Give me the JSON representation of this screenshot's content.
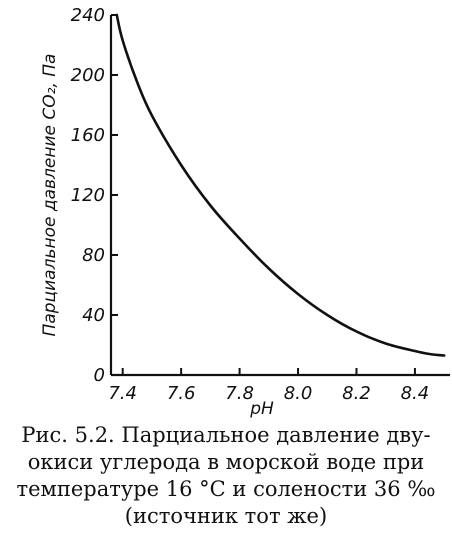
{
  "chart_data": {
    "type": "line",
    "xlabel": "pH",
    "ylabel": "Парциальное давление CO₂, Па",
    "xlim": [
      7.36,
      8.52
    ],
    "ylim": [
      0,
      240
    ],
    "x_ticks": [
      "7.4",
      "7.6",
      "7.8",
      "8.0",
      "8.2",
      "8.4"
    ],
    "y_ticks": [
      "0",
      "40",
      "80",
      "120",
      "160",
      "200",
      "240"
    ],
    "grid": false,
    "series": [
      {
        "x": [
          7.38,
          7.4,
          7.45,
          7.5,
          7.6,
          7.7,
          7.8,
          7.9,
          8.0,
          8.1,
          8.2,
          8.3,
          8.4,
          8.45,
          8.5
        ],
        "y": [
          240,
          223,
          195,
          173,
          140,
          113,
          91,
          71,
          54,
          40,
          29,
          21,
          16,
          14,
          13
        ]
      }
    ]
  },
  "caption": {
    "lines": [
      "Рис. 5.2. Парциальное давление дву-",
      "окиси углерода в морской воде при",
      "температуре 16 °C и солености 36 ‰",
      "(источник тот же)"
    ]
  }
}
